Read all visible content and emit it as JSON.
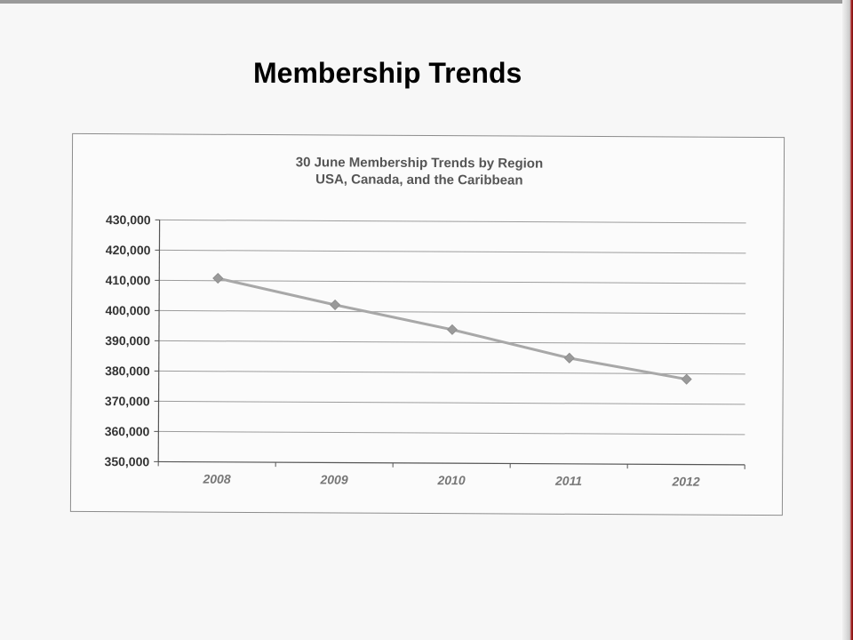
{
  "page": {
    "title": "Membership Trends"
  },
  "chart_data": {
    "type": "line",
    "title": "30 June Membership Trends by Region",
    "subtitle": "USA, Canada, and the Caribbean",
    "xlabel": "",
    "ylabel": "",
    "categories": [
      "2008",
      "2009",
      "2010",
      "2011",
      "2012"
    ],
    "series": [
      {
        "values": [
          410800,
          402200,
          394200,
          385000,
          378200
        ]
      }
    ],
    "ylim": [
      350000,
      430000
    ],
    "yticks": [
      350000,
      360000,
      370000,
      380000,
      390000,
      400000,
      410000,
      420000,
      430000
    ],
    "ytick_labels": [
      "350,000",
      "360,000",
      "370,000",
      "380,000",
      "390,000",
      "400,000",
      "410,000",
      "420,000",
      "430,000"
    ],
    "grid": true,
    "legend": "none",
    "colors": {
      "line": "#a8a8a8",
      "marker": "#9a9a9a",
      "grid": "#9c9c9c",
      "axis": "#555555"
    },
    "marker": "diamond"
  }
}
